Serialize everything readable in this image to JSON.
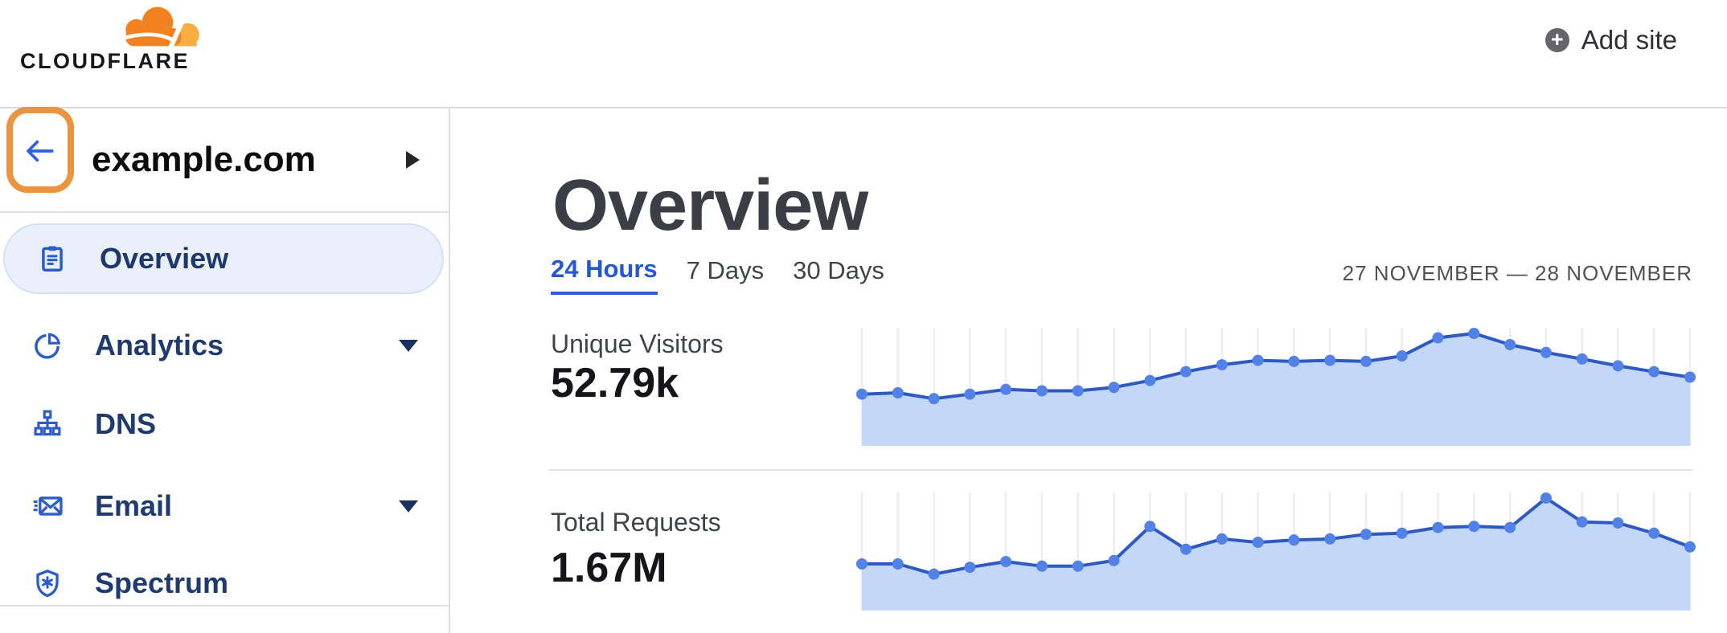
{
  "header": {
    "brand": "CLOUDFLARE",
    "add_site_label": "Add site",
    "add_site_plus": "+"
  },
  "sidebar": {
    "site_domain": "example.com",
    "items": [
      {
        "label": "Overview",
        "icon": "clipboard-icon",
        "selected": true,
        "has_submenu": false
      },
      {
        "label": "Analytics",
        "icon": "pie-chart-icon",
        "selected": false,
        "has_submenu": true
      },
      {
        "label": "DNS",
        "icon": "sitemap-icon",
        "selected": false,
        "has_submenu": false
      },
      {
        "label": "Email",
        "icon": "email-icon",
        "selected": false,
        "has_submenu": true
      },
      {
        "label": "Spectrum",
        "icon": "shield-icon",
        "selected": false,
        "has_submenu": false
      }
    ]
  },
  "main": {
    "title": "Overview",
    "tabs": [
      {
        "label": "24 Hours",
        "active": true
      },
      {
        "label": "7 Days",
        "active": false
      },
      {
        "label": "30 Days",
        "active": false
      }
    ],
    "date_range": "27 NOVEMBER — 28 NOVEMBER",
    "metrics": [
      {
        "label": "Unique Visitors",
        "value": "52.79k"
      },
      {
        "label": "Total Requests",
        "value": "1.67M"
      }
    ]
  },
  "chart_data": [
    {
      "type": "area",
      "title": "Unique Visitors",
      "total_shown": "52.79k",
      "time_span": "27 November — 28 November (24 Hours)",
      "x": [
        0,
        1,
        2,
        3,
        4,
        5,
        6,
        7,
        8,
        9,
        10,
        11,
        12,
        13,
        14,
        15,
        16,
        17,
        18,
        19,
        20,
        21,
        22,
        23
      ],
      "values": [
        1510,
        1550,
        1380,
        1510,
        1650,
        1610,
        1610,
        1710,
        1910,
        2170,
        2370,
        2500,
        2470,
        2500,
        2470,
        2630,
        3160,
        3290,
        2960,
        2730,
        2540,
        2340,
        2170,
        2010
      ],
      "unit": "visitors per interval (estimated from plot)",
      "ylim": [
        0,
        3300
      ],
      "xlabel": "",
      "ylabel": "",
      "grid": "vertical gridline at each data point",
      "legend": false
    },
    {
      "type": "area",
      "title": "Total Requests",
      "total_shown": "1.67M",
      "time_span": "27 November — 28 November (24 Hours)",
      "x": [
        0,
        1,
        2,
        3,
        4,
        5,
        6,
        7,
        8,
        9,
        10,
        11,
        12,
        13,
        14,
        15,
        16,
        17,
        18,
        19,
        20,
        21,
        22,
        23
      ],
      "values": [
        48000,
        48000,
        37500,
        44500,
        50400,
        45700,
        45700,
        51500,
        86700,
        63200,
        73800,
        70300,
        72600,
        73800,
        78500,
        79600,
        85500,
        86700,
        85500,
        115900,
        91300,
        90200,
        79600,
        65600
      ],
      "unit": "requests per interval (estimated from plot)",
      "ylim": [
        0,
        116000
      ],
      "xlabel": "",
      "ylabel": "",
      "grid": "vertical gridline at each data point",
      "legend": false
    }
  ],
  "colors": {
    "brand_orange": "#F48120",
    "brand_orange_light": "#FAAD40",
    "highlight_orange": "#eb9440",
    "accent_blue": "#2b5bcc",
    "nav_text": "#1e3a6e",
    "selected_pill_bg": "#e9f0fb",
    "tab_active": "#2456d6",
    "chart_line": "#2e59c2",
    "chart_dot": "#5282e8",
    "chart_fill": "#c3d7f8",
    "chart_grid": "#eaedf6",
    "divider": "#e0e0e0"
  }
}
